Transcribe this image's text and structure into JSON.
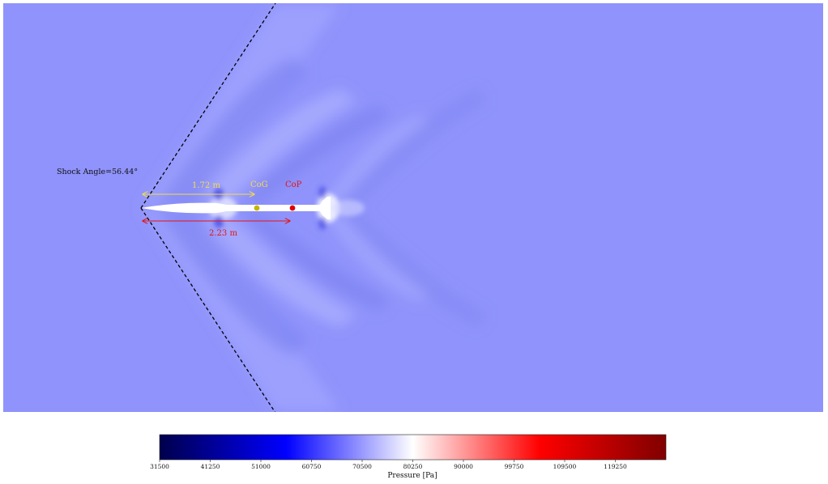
{
  "annotations": {
    "shock_angle_label": "Shock Angle=56.44°",
    "cog_distance_label": "1.72 m",
    "cop_distance_label": "2.23 m",
    "cog_label": "CoG",
    "cop_label": "CoP"
  },
  "colors": {
    "field_background": "#8f93fb",
    "rocket_body": "#ffffff",
    "shock_line": "#000000",
    "cog_color": "#c8b400",
    "cop_color": "#e00000",
    "cog_label_color": "#f2dc4a",
    "cop_label_color": "#e41414"
  },
  "colorbar": {
    "label": "Pressure [Pa]",
    "min": 31500,
    "max": 129000,
    "ticks": [
      "31500",
      "41250",
      "51000",
      "60750",
      "70500",
      "80250",
      "90000",
      "99750",
      "109500",
      "119250"
    ],
    "colormap": "seismic"
  }
}
